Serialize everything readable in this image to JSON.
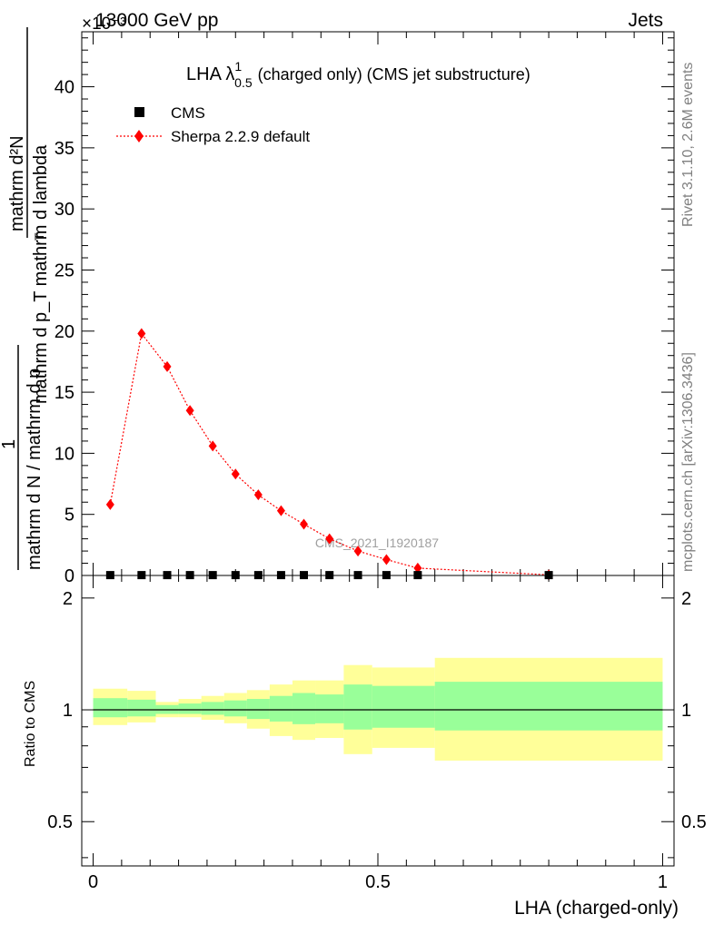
{
  "header": {
    "energy": "13000 GeV pp",
    "category": "Jets",
    "y_exponent": "×10⁻³"
  },
  "side_labels": {
    "rivet": "Rivet 3.1.10,  2.6M events",
    "mcplots": "mcplots.cern.ch [arXiv:1306.3436]"
  },
  "watermark": "CMS_2021_I1920187",
  "main_plot": {
    "title_prefix": "LHA ",
    "title_lambda": "λ",
    "title_sup": "1",
    "title_sub": "0.5",
    "title_suffix": "(charged only) (CMS jet substructure)",
    "ylabel_numerator": "mathrm d²N",
    "ylabel_left": "1",
    "ylabel_left_den": "mathrm d N / mathrm d p",
    "ylabel_right_den": "mathrm d p_T mathrm d lambda",
    "ylabel_right_den_sub": "T"
  },
  "ratio_plot": {
    "ylabel": "Ratio to CMS",
    "xlabel": "LHA (charged-only)"
  },
  "legend": [
    {
      "name": "CMS",
      "marker": "square",
      "color": "#000000"
    },
    {
      "name": "Sherpa 2.2.9 default",
      "marker": "diamond",
      "color": "#ff0000"
    }
  ],
  "chart_data": [
    {
      "type": "scatter",
      "panel": "main",
      "xlim": [
        -0.02,
        1.02
      ],
      "ylim": [
        0,
        44.5
      ],
      "y_scale_factor": "1e-3",
      "yticks": [
        0,
        5,
        10,
        15,
        20,
        25,
        30,
        35,
        40
      ],
      "series": [
        {
          "name": "CMS",
          "color": "#000000",
          "x": [
            0.03,
            0.085,
            0.13,
            0.17,
            0.21,
            0.25,
            0.29,
            0.33,
            0.37,
            0.415,
            0.465,
            0.515,
            0.57,
            0.8
          ],
          "y": [
            0.03,
            0.03,
            0.03,
            0.03,
            0.03,
            0.03,
            0.03,
            0.03,
            0.03,
            0.03,
            0.03,
            0.03,
            0.03,
            0.03
          ]
        },
        {
          "name": "Sherpa 2.2.9 default",
          "color": "#ff0000",
          "line": "dotted",
          "x": [
            0.03,
            0.085,
            0.13,
            0.17,
            0.21,
            0.25,
            0.29,
            0.33,
            0.37,
            0.415,
            0.465,
            0.515,
            0.57,
            0.8
          ],
          "y": [
            5.8,
            19.8,
            17.1,
            13.5,
            10.6,
            8.3,
            6.6,
            5.3,
            4.2,
            3.0,
            2.0,
            1.3,
            0.6,
            0.05
          ]
        }
      ]
    },
    {
      "type": "area",
      "panel": "ratio",
      "xlim": [
        -0.02,
        1.02
      ],
      "ylim": [
        0.38,
        2.3
      ],
      "y_scale": "log",
      "yticks": [
        0.5,
        1,
        2
      ],
      "xticks": [
        0,
        0.5,
        1
      ],
      "reference_line": 1,
      "bins": [
        {
          "lo": 0.0,
          "hi": 0.06,
          "yellow": [
            0.91,
            1.14
          ],
          "green": [
            0.955,
            1.075
          ]
        },
        {
          "lo": 0.06,
          "hi": 0.11,
          "yellow": [
            0.925,
            1.125
          ],
          "green": [
            0.96,
            1.065
          ]
        },
        {
          "lo": 0.11,
          "hi": 0.15,
          "yellow": [
            0.955,
            1.05
          ],
          "green": [
            0.975,
            1.03
          ]
        },
        {
          "lo": 0.15,
          "hi": 0.19,
          "yellow": [
            0.955,
            1.07
          ],
          "green": [
            0.975,
            1.04
          ]
        },
        {
          "lo": 0.19,
          "hi": 0.23,
          "yellow": [
            0.94,
            1.09
          ],
          "green": [
            0.97,
            1.05
          ]
        },
        {
          "lo": 0.23,
          "hi": 0.27,
          "yellow": [
            0.92,
            1.11
          ],
          "green": [
            0.96,
            1.06
          ]
        },
        {
          "lo": 0.27,
          "hi": 0.31,
          "yellow": [
            0.89,
            1.13
          ],
          "green": [
            0.945,
            1.07
          ]
        },
        {
          "lo": 0.31,
          "hi": 0.35,
          "yellow": [
            0.85,
            1.17
          ],
          "green": [
            0.93,
            1.09
          ]
        },
        {
          "lo": 0.35,
          "hi": 0.39,
          "yellow": [
            0.83,
            1.2
          ],
          "green": [
            0.915,
            1.11
          ]
        },
        {
          "lo": 0.39,
          "hi": 0.44,
          "yellow": [
            0.84,
            1.2
          ],
          "green": [
            0.92,
            1.1
          ]
        },
        {
          "lo": 0.44,
          "hi": 0.49,
          "yellow": [
            0.76,
            1.32
          ],
          "green": [
            0.885,
            1.17
          ]
        },
        {
          "lo": 0.49,
          "hi": 0.6,
          "yellow": [
            0.79,
            1.3
          ],
          "green": [
            0.895,
            1.16
          ]
        },
        {
          "lo": 0.6,
          "hi": 1.0,
          "yellow": [
            0.73,
            1.38
          ],
          "green": [
            0.88,
            1.19
          ]
        }
      ]
    }
  ]
}
